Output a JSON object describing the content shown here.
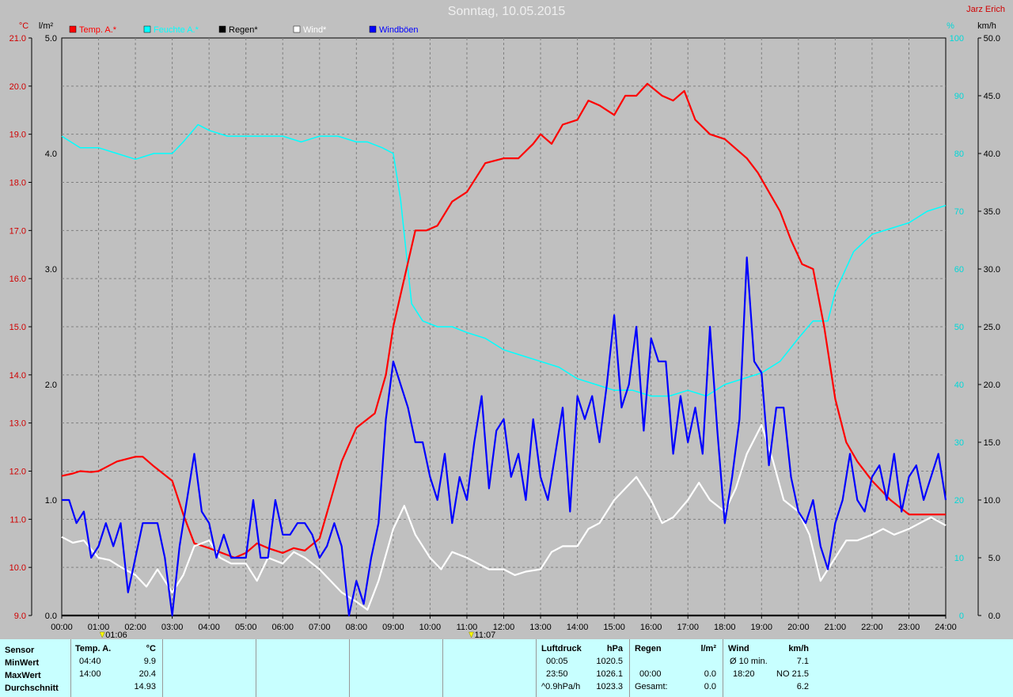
{
  "title": "Sonntag, 10.05.2015",
  "station": "Jarz Erich",
  "chart_data": {
    "type": "line",
    "x_ticks": [
      "00:00",
      "01:00",
      "02:00",
      "03:00",
      "04:00",
      "05:00",
      "06:00",
      "07:00",
      "08:00",
      "09:00",
      "10:00",
      "11:00",
      "12:00",
      "13:00",
      "14:00",
      "15:00",
      "16:00",
      "17:00",
      "18:00",
      "19:00",
      "20:00",
      "21:00",
      "22:00",
      "23:00",
      "24:00"
    ],
    "axes": {
      "temp": {
        "unit": "°C",
        "ticks": [
          "21.0",
          "20.0",
          "19.0",
          "18.0",
          "17.0",
          "16.0",
          "15.0",
          "14.0",
          "13.0",
          "12.0",
          "11.0",
          "10.0",
          "9.0"
        ],
        "range": [
          9,
          21
        ]
      },
      "rain": {
        "unit": "l/m²",
        "ticks": [
          "5.0",
          "4.0",
          "3.0",
          "2.0",
          "1.0",
          "0.0"
        ],
        "range": [
          0,
          5
        ]
      },
      "humidity": {
        "unit": "%",
        "ticks": [
          "100",
          "90",
          "80",
          "70",
          "60",
          "50",
          "40",
          "30",
          "20",
          "10",
          "0"
        ],
        "range": [
          0,
          100
        ]
      },
      "wind": {
        "unit": "km/h",
        "ticks": [
          "50.0",
          "45.0",
          "40.0",
          "35.0",
          "30.0",
          "25.0",
          "20.0",
          "15.0",
          "10.0",
          "5.0",
          "0.0"
        ],
        "range": [
          0,
          50
        ]
      }
    },
    "legend": [
      {
        "name": "Temp. A.*",
        "color": "#ff0000"
      },
      {
        "name": "Feuchte A.*",
        "color": "#00ffff"
      },
      {
        "name": "Regen*",
        "color": "#000000"
      },
      {
        "name": "Wind*",
        "color": "#ffffff"
      },
      {
        "name": "Windböen",
        "color": "#0000ff"
      }
    ],
    "markers": [
      {
        "label": "01:06",
        "time": 1.1
      },
      {
        "label": "11:07",
        "time": 11.12
      }
    ],
    "series": [
      {
        "name": "Temp. A.*",
        "axis": "temp",
        "color": "#ff0000",
        "x": [
          0,
          0.3,
          0.5,
          0.8,
          1.0,
          1.5,
          2.0,
          2.2,
          2.5,
          3.0,
          3.3,
          3.6,
          4.0,
          4.7,
          5.0,
          5.3,
          5.6,
          6.0,
          6.3,
          6.6,
          7.0,
          7.3,
          7.6,
          8.0,
          8.5,
          8.8,
          9.0,
          9.3,
          9.6,
          9.9,
          10.2,
          10.6,
          11.0,
          11.5,
          12.0,
          12.4,
          12.8,
          13.0,
          13.3,
          13.6,
          14.0,
          14.3,
          14.6,
          15.0,
          15.3,
          15.6,
          15.9,
          16.3,
          16.6,
          16.9,
          17.2,
          17.6,
          18.0,
          18.3,
          18.6,
          18.9,
          19.2,
          19.5,
          19.8,
          20.1,
          20.4,
          20.7,
          21.0,
          21.3,
          21.6,
          22.0,
          22.5,
          23.0,
          23.5,
          24.0
        ],
        "values": [
          11.9,
          11.95,
          12.0,
          11.98,
          12.0,
          12.2,
          12.3,
          12.3,
          12.1,
          11.8,
          11.1,
          10.5,
          10.4,
          10.2,
          10.3,
          10.5,
          10.4,
          10.3,
          10.4,
          10.35,
          10.6,
          11.4,
          12.2,
          12.9,
          13.2,
          14.0,
          15.0,
          16.0,
          17.0,
          17.0,
          17.1,
          17.6,
          17.8,
          18.4,
          18.5,
          18.5,
          18.8,
          19.0,
          18.8,
          19.2,
          19.3,
          19.7,
          19.6,
          19.4,
          19.8,
          19.8,
          20.05,
          19.8,
          19.7,
          19.9,
          19.3,
          19.0,
          18.9,
          18.7,
          18.5,
          18.2,
          17.8,
          17.4,
          16.8,
          16.3,
          16.2,
          15.0,
          13.5,
          12.6,
          12.2,
          11.8,
          11.4,
          11.1,
          11.1,
          11.1
        ]
      },
      {
        "name": "Feuchte A.*",
        "axis": "humidity",
        "color": "#00ffff",
        "x": [
          0,
          0.5,
          1.0,
          1.5,
          2.0,
          2.5,
          3.0,
          3.3,
          3.7,
          4.0,
          4.5,
          5.0,
          5.5,
          6.0,
          6.5,
          7.0,
          7.5,
          8.0,
          8.3,
          8.7,
          9.0,
          9.2,
          9.5,
          9.8,
          10.2,
          10.6,
          11.0,
          11.5,
          12.0,
          12.5,
          13.0,
          13.5,
          14.0,
          14.5,
          15.0,
          15.5,
          16.0,
          16.5,
          17.0,
          17.5,
          18.0,
          18.5,
          19.0,
          19.5,
          20.0,
          20.4,
          20.8,
          21.0,
          21.5,
          22.0,
          22.5,
          23.0,
          23.5,
          24.0
        ],
        "values": [
          83,
          81,
          81,
          80,
          79,
          80,
          80,
          82,
          85,
          84,
          83,
          83,
          83,
          83,
          82,
          83,
          83,
          82,
          82,
          81,
          80,
          72,
          54,
          51,
          50,
          50,
          49,
          48,
          46,
          45,
          44,
          43,
          41,
          40,
          39,
          39,
          38,
          38,
          39,
          38,
          40,
          41,
          42,
          44,
          48,
          51,
          51,
          56,
          63,
          66,
          67,
          68,
          70,
          71
        ]
      },
      {
        "name": "Regen*",
        "axis": "rain",
        "color": "#000000",
        "x": [
          0,
          24
        ],
        "values": [
          0,
          0
        ]
      },
      {
        "name": "Wind*",
        "axis": "wind",
        "color": "#ffffff",
        "x": [
          0,
          0.3,
          0.6,
          1.0,
          1.3,
          1.6,
          2.0,
          2.3,
          2.6,
          3.0,
          3.3,
          3.6,
          4.0,
          4.3,
          4.6,
          5.0,
          5.3,
          5.6,
          6.0,
          6.3,
          6.6,
          7.0,
          7.3,
          7.6,
          8.0,
          8.3,
          8.6,
          9.0,
          9.3,
          9.6,
          10.0,
          10.3,
          10.6,
          11.0,
          11.3,
          11.6,
          12.0,
          12.3,
          12.6,
          13.0,
          13.3,
          13.6,
          14.0,
          14.3,
          14.6,
          15.0,
          15.3,
          15.6,
          16.0,
          16.3,
          16.6,
          17.0,
          17.3,
          17.6,
          18.0,
          18.3,
          18.6,
          19.0,
          19.3,
          19.6,
          20.0,
          20.3,
          20.6,
          21.0,
          21.3,
          21.6,
          22.0,
          22.3,
          22.6,
          23.0,
          23.3,
          23.6,
          24.0
        ],
        "values": [
          6.8,
          6.3,
          6.5,
          5.0,
          4.8,
          4.2,
          3.5,
          2.5,
          4.0,
          2.0,
          3.5,
          6.0,
          6.5,
          5.0,
          4.5,
          4.5,
          3.0,
          5.0,
          4.5,
          5.5,
          5.0,
          4.0,
          3.0,
          2.0,
          1.2,
          0.5,
          3.0,
          7.5,
          9.5,
          7.0,
          5.0,
          4.0,
          5.5,
          5.0,
          4.5,
          4.0,
          4.0,
          3.5,
          3.8,
          4.0,
          5.5,
          6.0,
          6.0,
          7.5,
          8.0,
          10.0,
          11.0,
          12.0,
          10.0,
          8.0,
          8.5,
          10.0,
          11.5,
          10.0,
          9.0,
          11.0,
          14.0,
          16.5,
          13.5,
          10.0,
          9.0,
          7.0,
          3.0,
          5.0,
          6.5,
          6.5,
          7.0,
          7.5,
          7.0,
          7.5,
          8.0,
          8.5,
          7.8
        ]
      },
      {
        "name": "Windböen",
        "axis": "wind",
        "color": "#0000ff",
        "x": [
          0,
          0.2,
          0.4,
          0.6,
          0.8,
          1.0,
          1.2,
          1.4,
          1.6,
          1.8,
          2.0,
          2.2,
          2.4,
          2.6,
          2.8,
          3.0,
          3.2,
          3.4,
          3.6,
          3.8,
          4.0,
          4.2,
          4.4,
          4.6,
          4.8,
          5.0,
          5.2,
          5.4,
          5.6,
          5.8,
          6.0,
          6.2,
          6.4,
          6.6,
          6.8,
          7.0,
          7.2,
          7.4,
          7.6,
          7.8,
          8.0,
          8.2,
          8.4,
          8.6,
          8.8,
          9.0,
          9.2,
          9.4,
          9.6,
          9.8,
          10.0,
          10.2,
          10.4,
          10.6,
          10.8,
          11.0,
          11.2,
          11.4,
          11.6,
          11.8,
          12.0,
          12.2,
          12.4,
          12.6,
          12.8,
          13.0,
          13.2,
          13.4,
          13.6,
          13.8,
          14.0,
          14.2,
          14.4,
          14.6,
          14.8,
          15.0,
          15.2,
          15.4,
          15.6,
          15.8,
          16.0,
          16.2,
          16.4,
          16.6,
          16.8,
          17.0,
          17.2,
          17.4,
          17.6,
          17.8,
          18.0,
          18.2,
          18.4,
          18.6,
          18.8,
          19.0,
          19.2,
          19.4,
          19.6,
          19.8,
          20.0,
          20.2,
          20.4,
          20.6,
          20.8,
          21.0,
          21.2,
          21.4,
          21.6,
          21.8,
          22.0,
          22.2,
          22.4,
          22.6,
          22.8,
          23.0,
          23.2,
          23.4,
          23.6,
          23.8,
          24.0
        ],
        "values": [
          10,
          10,
          8,
          9,
          5,
          6,
          8,
          6,
          8,
          2,
          5,
          8,
          8,
          8,
          5,
          0,
          6,
          10,
          14,
          9,
          8,
          5,
          7,
          5,
          5,
          5,
          10,
          5,
          5,
          10,
          7,
          7,
          8,
          8,
          7,
          5,
          6,
          8,
          6,
          0,
          3,
          1,
          5,
          8,
          17,
          22,
          20,
          18,
          15,
          15,
          12,
          10,
          14,
          8,
          12,
          10,
          15,
          19,
          11,
          16,
          17,
          12,
          14,
          10,
          17,
          12,
          10,
          14,
          18,
          9,
          19,
          17,
          19,
          15,
          20,
          26,
          18,
          20,
          25,
          16,
          24,
          22,
          22,
          14,
          19,
          15,
          18,
          14,
          25,
          16,
          8,
          12,
          17,
          31,
          22,
          21,
          13,
          18,
          18,
          12,
          9,
          8,
          10,
          6,
          4,
          8,
          10,
          14,
          10,
          9,
          12,
          13,
          10,
          14,
          9,
          12,
          13,
          10,
          12,
          14,
          10
        ]
      }
    ]
  },
  "panel": {
    "sensor": {
      "header": "Sensor",
      "min": "MinWert",
      "max": "MaxWert",
      "avg": "Durchschnitt"
    },
    "temp": {
      "header": "Temp. A.",
      "unit": "°C",
      "min_time": "04:40",
      "min_val": "9.9",
      "max_time": "14:00",
      "max_val": "20.4",
      "avg_val": "14.93"
    },
    "pressure": {
      "header": "Luftdruck",
      "unit": "hPa",
      "r1_time": "00:05",
      "r1_val": "1020.5",
      "r2_time": "23:50",
      "r2_val": "1026.1",
      "r3_time": "^0.9hPa/h",
      "r3_val": "1023.3"
    },
    "rain": {
      "header": "Regen",
      "unit": "l/m²",
      "r2_time": "00:00",
      "r2_val": "0.0",
      "r3_label": "Gesamt:",
      "r3_val": "0.0"
    },
    "wind": {
      "header": "Wind",
      "unit": "km/h",
      "r1_label": "Ø 10 min.",
      "r1_val": "7.1",
      "r2_time": "18:20",
      "r2_val": "NO 21.5",
      "r3_val": "6.2"
    }
  }
}
